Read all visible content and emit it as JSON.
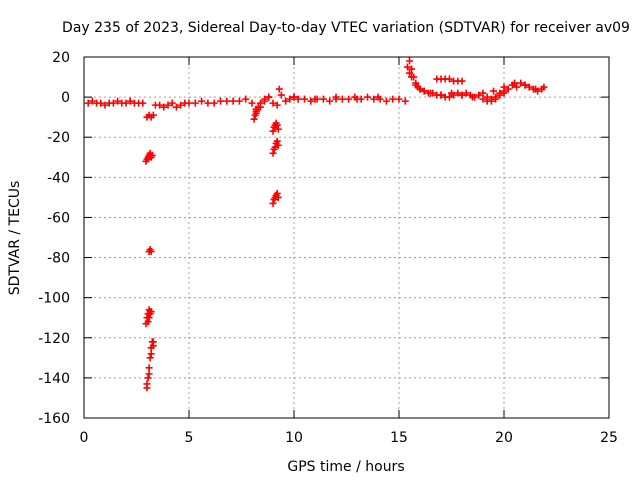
{
  "chart_data": {
    "type": "scatter",
    "title": "Day 235 of 2023, Sidereal Day-to-day VTEC variation (SDTVAR) for receiver av09",
    "xlabel": "GPS time / hours",
    "ylabel": "SDTVAR / TECUs",
    "xlim": [
      0,
      25
    ],
    "ylim": [
      -160,
      20
    ],
    "xticks": [
      0,
      5,
      10,
      15,
      20,
      25
    ],
    "yticks": [
      -160,
      -140,
      -120,
      -100,
      -80,
      -60,
      -40,
      -20,
      0,
      20
    ],
    "xtick_labels": [
      "0",
      "5",
      "10",
      "15",
      "20",
      "25"
    ],
    "ytick_labels": [
      "-160",
      "-140",
      "-120",
      "-100",
      "-80",
      "-60",
      "-40",
      "-20",
      "0",
      "20"
    ],
    "grid": true,
    "marker": "plus",
    "series": [
      {
        "name": "SDTVAR",
        "color": "#ff0000",
        "x": [
          0.2,
          0.4,
          0.6,
          0.8,
          1.0,
          1.2,
          1.4,
          1.6,
          1.8,
          2.0,
          2.2,
          2.4,
          2.6,
          2.8,
          3.0,
          3.1,
          3.2,
          3.3,
          3.4,
          3.6,
          3.8,
          4.0,
          4.2,
          4.4,
          4.6,
          4.8,
          5.0,
          5.3,
          5.6,
          5.9,
          6.2,
          6.5,
          6.8,
          7.1,
          7.4,
          7.7,
          8.0,
          8.2,
          8.4,
          8.6,
          8.8,
          9.0,
          9.2,
          9.4,
          9.6,
          9.8,
          10.0,
          10.2,
          10.5,
          10.8,
          11.1,
          11.4,
          11.7,
          12.0,
          12.3,
          12.6,
          12.9,
          13.2,
          13.5,
          13.8,
          14.1,
          14.4,
          14.7,
          15.0,
          15.3,
          15.5,
          15.6,
          15.7,
          15.8,
          15.9,
          16.0,
          16.2,
          16.4,
          16.6,
          16.8,
          17.0,
          17.2,
          17.4,
          17.6,
          17.8,
          18.0,
          18.2,
          18.4,
          18.6,
          18.8,
          19.0,
          19.2,
          19.4,
          19.6,
          19.8,
          20.0,
          20.2,
          20.4,
          20.6,
          20.8,
          21.0,
          21.2,
          21.4,
          21.6,
          21.8,
          16.8,
          17.0,
          17.2,
          17.4,
          17.6,
          17.8,
          18.0,
          2.95,
          3.0,
          3.05,
          3.1,
          3.15,
          3.2,
          3.25,
          3.0,
          3.05,
          3.1,
          3.15,
          3.2,
          3.25,
          3.3,
          2.95,
          3.0,
          3.05,
          3.1,
          3.15,
          3.1,
          3.15,
          3.2,
          3.05,
          3.1,
          3.15,
          3.2,
          9.0,
          9.05,
          9.1,
          9.15,
          9.2,
          9.25,
          9.0,
          9.05,
          9.1,
          9.15,
          9.2,
          9.25,
          9.0,
          9.05,
          9.1,
          9.15,
          9.2,
          9.25,
          8.1,
          8.15,
          8.2,
          8.3,
          8.4,
          8.6,
          8.8,
          8.2,
          3.0,
          3.1,
          3.2,
          3.3,
          19.2,
          19.4,
          19.6,
          19.8,
          20.0,
          15.4,
          15.5,
          15.6,
          15.8,
          16.0,
          16.2,
          16.5,
          17.0,
          17.5,
          18.0,
          18.5,
          19.0,
          19.5,
          20.0,
          20.5,
          21.0,
          21.5,
          21.9,
          9.3,
          12.0,
          13.0,
          14.0,
          11.0,
          10.0
        ],
        "y": [
          -3,
          -2,
          -3,
          -3,
          -4,
          -3,
          -3,
          -2,
          -3,
          -3,
          -2,
          -3,
          -3,
          -3,
          -10,
          -9,
          -10,
          -9,
          -4,
          -4,
          -5,
          -4,
          -3,
          -5,
          -4,
          -3,
          -3,
          -3,
          -2,
          -3,
          -3,
          -2,
          -2,
          -2,
          -2,
          -1,
          -3,
          -8,
          -5,
          -2,
          0,
          -3,
          -4,
          1,
          -2,
          -1,
          0,
          -1,
          -1,
          -2,
          -1,
          -1,
          -2,
          0,
          -1,
          -1,
          0,
          -1,
          0,
          -1,
          -1,
          -2,
          -1,
          -1,
          -2,
          18,
          14,
          10,
          7,
          5,
          4,
          3,
          2,
          2,
          1,
          1,
          0,
          0,
          1,
          2,
          1,
          2,
          1,
          0,
          1,
          -1,
          0,
          -2,
          -1,
          2,
          3,
          4,
          6,
          5,
          7,
          6,
          5,
          4,
          3,
          4,
          9,
          9,
          9,
          9,
          8,
          8,
          8,
          -32,
          -31,
          -30,
          -29,
          -28,
          -30,
          -29,
          -145,
          -140,
          -135,
          -130,
          -125,
          -122,
          -124,
          -113,
          -110,
          -108,
          -106,
          -107,
          -77,
          -76,
          -77,
          -112,
          -110,
          -108,
          -107,
          -53,
          -51,
          -50,
          -49,
          -48,
          -50,
          -28,
          -26,
          -25,
          -23,
          -22,
          -24,
          -17,
          -15,
          -14,
          -13,
          -14,
          -16,
          -11,
          -9,
          -7,
          -5,
          -3,
          -1,
          0,
          -6,
          -143,
          -138,
          -128,
          -122,
          -2,
          -1,
          0,
          1,
          2,
          15,
          12,
          10,
          6,
          4,
          3,
          2,
          1,
          2,
          1,
          0,
          2,
          3,
          5,
          7,
          6,
          4,
          5,
          4,
          -1,
          -1,
          0,
          -1,
          0
        ]
      }
    ]
  }
}
